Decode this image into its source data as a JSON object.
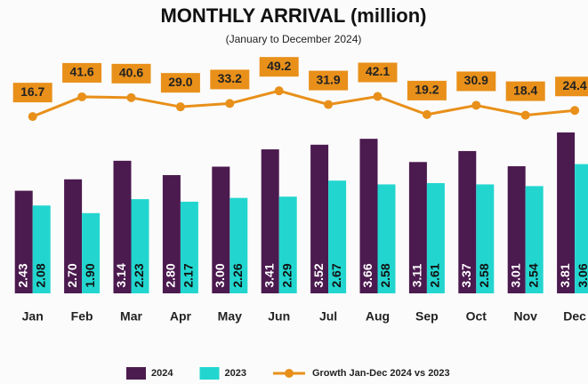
{
  "chart_data": {
    "type": "bar_line",
    "title": "MONTHLY ARRIVAL (million)",
    "subtitle": "(January to December 2024)",
    "categories": [
      "Jan",
      "Feb",
      "Mar",
      "Apr",
      "May",
      "Jun",
      "Jul",
      "Aug",
      "Sep",
      "Oct",
      "Nov",
      "Dec"
    ],
    "series": [
      {
        "name": "2024",
        "color": "#4b1a4f",
        "type": "bar",
        "values": [
          2.43,
          2.7,
          3.14,
          2.8,
          3.0,
          3.41,
          3.52,
          3.66,
          3.11,
          3.37,
          3.01,
          3.81
        ],
        "value_labels": [
          "2.43",
          "2.70",
          "3.14",
          "2.80",
          "3.00",
          "3.41",
          "3.52",
          "3.66",
          "3.11",
          "3.37",
          "3.01",
          "3.81"
        ]
      },
      {
        "name": "2023",
        "color": "#22d6cf",
        "type": "bar",
        "values": [
          2.08,
          1.9,
          2.23,
          2.17,
          2.26,
          2.29,
          2.67,
          2.58,
          2.61,
          2.58,
          2.54,
          3.06
        ],
        "value_labels": [
          "2.08",
          "1.90",
          "2.23",
          "2.17",
          "2.26",
          "2.29",
          "2.67",
          "2.58",
          "2.61",
          "2.58",
          "2.54",
          "3.06"
        ]
      },
      {
        "name": "Growth Jan-Dec 2024 vs 2023",
        "color": "#e8901a",
        "type": "line",
        "axis": "y2",
        "values": [
          16.7,
          41.6,
          40.6,
          29.0,
          33.2,
          49.2,
          31.9,
          42.1,
          19.2,
          30.9,
          18.4,
          24.4
        ],
        "value_labels": [
          "16.7",
          "41.6",
          "40.6",
          "29.0",
          "33.2",
          "49.2",
          "31.9",
          "42.1",
          "19.2",
          "30.9",
          "18.4",
          "24.4"
        ]
      }
    ],
    "ylim": [
      0,
      4
    ],
    "y2lim": [
      0,
      55
    ],
    "legend": "bottom"
  }
}
